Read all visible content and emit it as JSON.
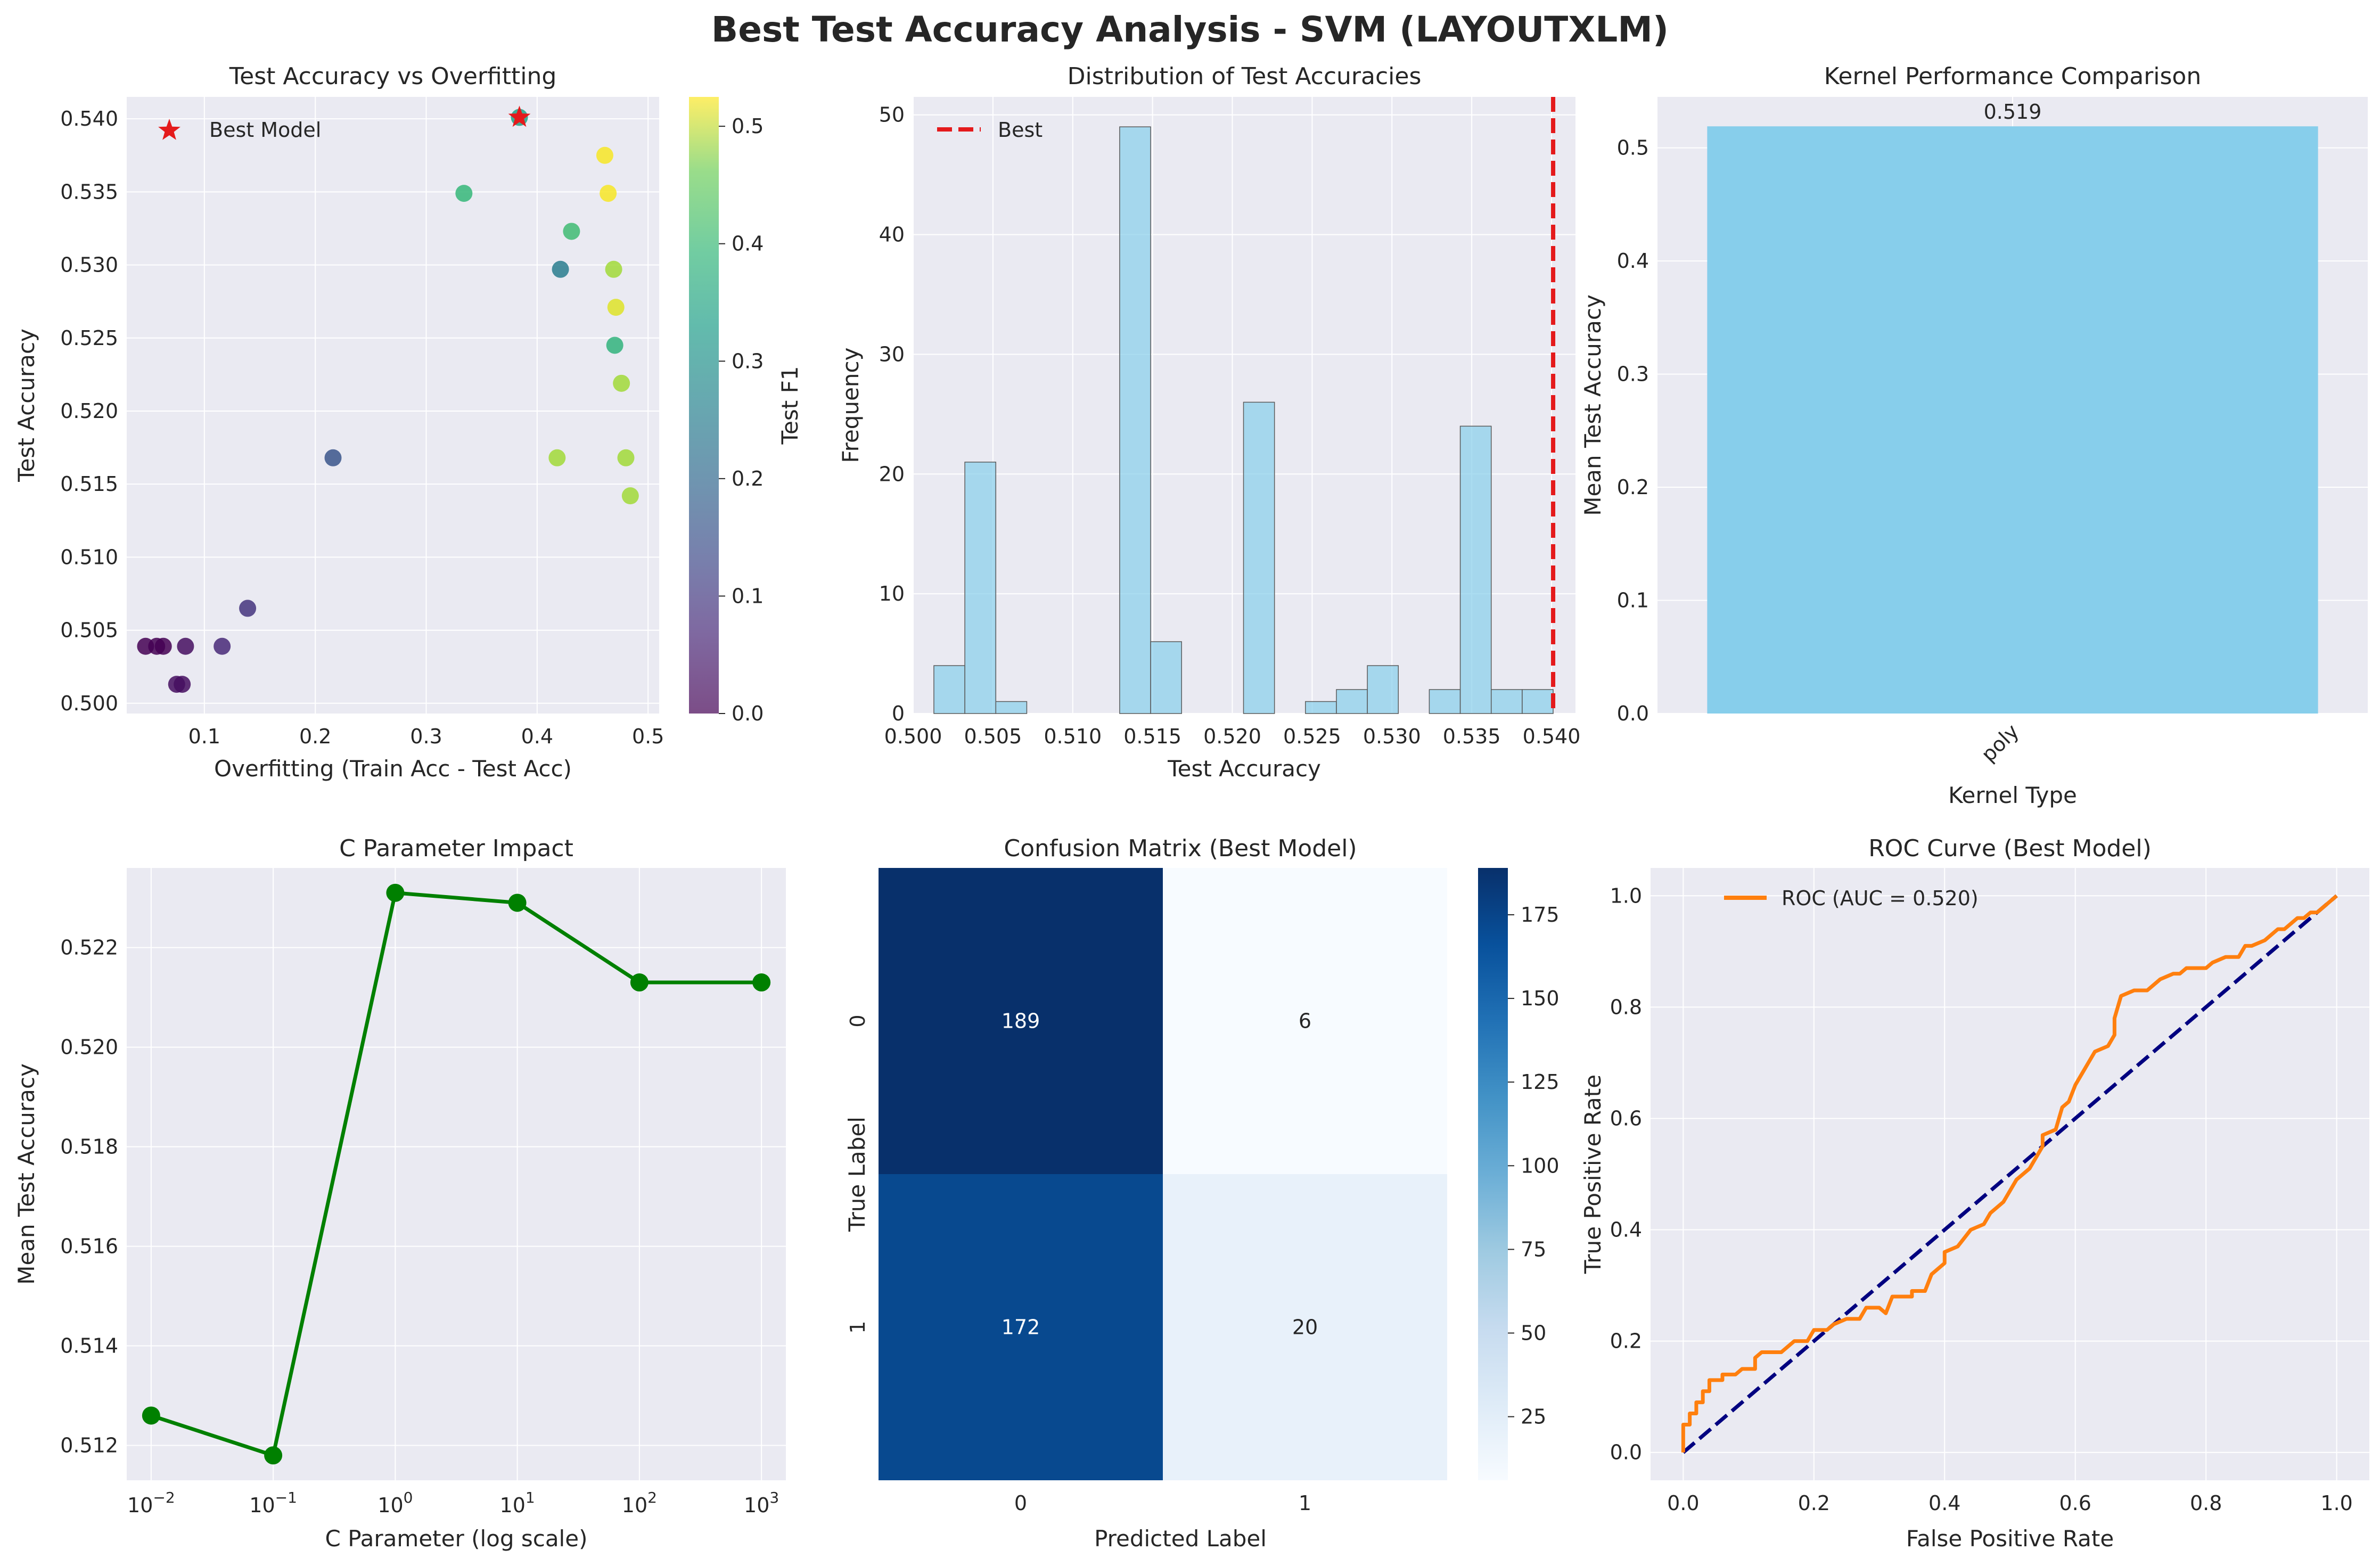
{
  "title": "Best Test Accuracy Analysis - SVM (LAYOUTXLM)",
  "chart_data": [
    {
      "type": "scatter",
      "title": "Test Accuracy vs Overfitting",
      "xlabel": "Overfitting (Train Acc - Test Acc)",
      "ylabel": "Test Accuracy",
      "xlim": [
        0.03,
        0.51
      ],
      "ylim": [
        0.4993,
        0.5415
      ],
      "xticks": [
        "0.1",
        "0.2",
        "0.3",
        "0.4",
        "0.5"
      ],
      "xtick_values": [
        0.1,
        0.2,
        0.3,
        0.4,
        0.5
      ],
      "yticks": [
        "0.500",
        "0.505",
        "0.510",
        "0.515",
        "0.520",
        "0.525",
        "0.530",
        "0.535",
        "0.540"
      ],
      "ytick_values": [
        0.5,
        0.505,
        0.51,
        0.515,
        0.52,
        0.525,
        0.53,
        0.535,
        0.54
      ],
      "colorbar_label": "Test F1",
      "colorbar_range": [
        0.0,
        0.525
      ],
      "colorbar_ticks": [
        "0.0",
        "0.1",
        "0.2",
        "0.3",
        "0.4",
        "0.5"
      ],
      "colorbar_tick_values": [
        0.0,
        0.1,
        0.2,
        0.3,
        0.4,
        0.5
      ],
      "colormap": "viridis",
      "legend": "Best Model",
      "best_marker_color": "#e41a1c",
      "points": [
        {
          "x": 0.384,
          "y": 0.5401,
          "f1": 0.3
        },
        {
          "x": 0.461,
          "y": 0.5375,
          "f1": 0.52
        },
        {
          "x": 0.334,
          "y": 0.5349,
          "f1": 0.35
        },
        {
          "x": 0.464,
          "y": 0.5349,
          "f1": 0.52
        },
        {
          "x": 0.431,
          "y": 0.5323,
          "f1": 0.36
        },
        {
          "x": 0.421,
          "y": 0.5297,
          "f1": 0.22
        },
        {
          "x": 0.469,
          "y": 0.5297,
          "f1": 0.45
        },
        {
          "x": 0.471,
          "y": 0.5271,
          "f1": 0.5
        },
        {
          "x": 0.47,
          "y": 0.5245,
          "f1": 0.34
        },
        {
          "x": 0.476,
          "y": 0.5219,
          "f1": 0.45
        },
        {
          "x": 0.216,
          "y": 0.5168,
          "f1": 0.14
        },
        {
          "x": 0.418,
          "y": 0.5168,
          "f1": 0.45
        },
        {
          "x": 0.48,
          "y": 0.5168,
          "f1": 0.45
        },
        {
          "x": 0.484,
          "y": 0.5142,
          "f1": 0.45
        },
        {
          "x": 0.139,
          "y": 0.5065,
          "f1": 0.08
        },
        {
          "x": 0.047,
          "y": 0.5039,
          "f1": 0.0
        },
        {
          "x": 0.057,
          "y": 0.5039,
          "f1": 0.0
        },
        {
          "x": 0.063,
          "y": 0.5039,
          "f1": 0.0
        },
        {
          "x": 0.083,
          "y": 0.5039,
          "f1": 0.02
        },
        {
          "x": 0.116,
          "y": 0.5039,
          "f1": 0.06
        },
        {
          "x": 0.075,
          "y": 0.5013,
          "f1": 0.02
        },
        {
          "x": 0.08,
          "y": 0.5013,
          "f1": 0.02
        }
      ],
      "best": {
        "x": 0.384,
        "y": 0.5401
      }
    },
    {
      "type": "bar",
      "title": "Distribution of Test Accuracies",
      "xlabel": "Test Accuracy",
      "ylabel": "Frequency",
      "xlim": [
        0.5,
        0.5415
      ],
      "ylim": [
        0,
        51.5
      ],
      "xticks": [
        "0.500",
        "0.505",
        "0.510",
        "0.515",
        "0.520",
        "0.525",
        "0.530",
        "0.535",
        "0.540"
      ],
      "xtick_values": [
        0.5,
        0.505,
        0.51,
        0.515,
        0.52,
        0.525,
        0.53,
        0.535,
        0.54
      ],
      "yticks": [
        "0",
        "10",
        "20",
        "30",
        "40",
        "50"
      ],
      "ytick_values": [
        0,
        10,
        20,
        30,
        40,
        50
      ],
      "bin_start": 0.5013,
      "bin_width": 0.00194,
      "counts": [
        4,
        21,
        1,
        0,
        0,
        0,
        49,
        6,
        0,
        0,
        26,
        0,
        1,
        2,
        4,
        0,
        2,
        24,
        2,
        2
      ],
      "best_line": 0.5401,
      "legend": "Best",
      "bar_color": "#87ceeb",
      "line_color": "#e41a1c"
    },
    {
      "type": "bar",
      "title": "Kernel Performance Comparison",
      "xlabel": "Kernel Type",
      "ylabel": "Mean Test Accuracy",
      "categories": [
        "poly"
      ],
      "values": [
        0.519
      ],
      "value_labels": [
        "0.519"
      ],
      "ylim": [
        0,
        0.545
      ],
      "yticks": [
        "0.0",
        "0.1",
        "0.2",
        "0.3",
        "0.4",
        "0.5"
      ],
      "ytick_values": [
        0.0,
        0.1,
        0.2,
        0.3,
        0.4,
        0.5
      ],
      "bar_color": "#87ceeb"
    },
    {
      "type": "line",
      "title": "C Parameter Impact",
      "xlabel": "C Parameter (log scale)",
      "ylabel": "Mean Test Accuracy",
      "x": [
        0.01,
        0.1,
        1,
        10,
        100,
        1000
      ],
      "values": [
        0.5126,
        0.5118,
        0.5231,
        0.5229,
        0.5213,
        0.5213
      ],
      "xscale": "log",
      "xlim_exp": [
        -2.2,
        3.2
      ],
      "ylim": [
        0.5113,
        0.5236
      ],
      "xticks": [
        {
          "base": "10",
          "exp": "−2"
        },
        {
          "base": "10",
          "exp": "−1"
        },
        {
          "base": "10",
          "exp": "0"
        },
        {
          "base": "10",
          "exp": "1"
        },
        {
          "base": "10",
          "exp": "2"
        },
        {
          "base": "10",
          "exp": "3"
        }
      ],
      "xtick_exps": [
        -2,
        -1,
        0,
        1,
        2,
        3
      ],
      "yticks": [
        "0.512",
        "0.514",
        "0.516",
        "0.518",
        "0.520",
        "0.522"
      ],
      "ytick_values": [
        0.512,
        0.514,
        0.516,
        0.518,
        0.52,
        0.522
      ],
      "line_color": "#008000"
    },
    {
      "type": "heatmap",
      "title": "Confusion Matrix (Best Model)",
      "xlabel": "Predicted Label",
      "ylabel": "True Label",
      "x_categories": [
        "0",
        "1"
      ],
      "y_categories": [
        "0",
        "1"
      ],
      "matrix": [
        [
          189,
          6
        ],
        [
          172,
          20
        ]
      ],
      "colormap": "Blues",
      "colorbar_range": [
        6,
        189
      ],
      "colorbar_ticks": [
        "25",
        "50",
        "75",
        "100",
        "125",
        "150",
        "175"
      ],
      "colorbar_tick_values": [
        25,
        50,
        75,
        100,
        125,
        150,
        175
      ]
    },
    {
      "type": "line",
      "title": "ROC Curve (Best Model)",
      "xlabel": "False Positive Rate",
      "ylabel": "True Positive Rate",
      "xlim": [
        -0.05,
        1.05
      ],
      "ylim": [
        -0.05,
        1.05
      ],
      "xticks": [
        "0.0",
        "0.2",
        "0.4",
        "0.6",
        "0.8",
        "1.0"
      ],
      "xtick_values": [
        0.0,
        0.2,
        0.4,
        0.6,
        0.8,
        1.0
      ],
      "yticks": [
        "0.0",
        "0.2",
        "0.4",
        "0.6",
        "0.8",
        "1.0"
      ],
      "ytick_values": [
        0.0,
        0.2,
        0.4,
        0.6,
        0.8,
        1.0
      ],
      "legend": "ROC (AUC = 0.520)",
      "roc_color": "#ff7f0e",
      "diag_color": "#000080",
      "roc": [
        [
          0,
          0
        ],
        [
          0,
          0.05
        ],
        [
          0.01,
          0.05
        ],
        [
          0.01,
          0.07
        ],
        [
          0.02,
          0.07
        ],
        [
          0.02,
          0.09
        ],
        [
          0.03,
          0.09
        ],
        [
          0.03,
          0.11
        ],
        [
          0.04,
          0.11
        ],
        [
          0.04,
          0.13
        ],
        [
          0.06,
          0.13
        ],
        [
          0.06,
          0.14
        ],
        [
          0.08,
          0.14
        ],
        [
          0.09,
          0.15
        ],
        [
          0.11,
          0.15
        ],
        [
          0.11,
          0.17
        ],
        [
          0.12,
          0.18
        ],
        [
          0.15,
          0.18
        ],
        [
          0.16,
          0.19
        ],
        [
          0.17,
          0.2
        ],
        [
          0.19,
          0.2
        ],
        [
          0.2,
          0.22
        ],
        [
          0.22,
          0.22
        ],
        [
          0.23,
          0.23
        ],
        [
          0.25,
          0.24
        ],
        [
          0.27,
          0.24
        ],
        [
          0.28,
          0.26
        ],
        [
          0.3,
          0.26
        ],
        [
          0.31,
          0.25
        ],
        [
          0.32,
          0.28
        ],
        [
          0.35,
          0.28
        ],
        [
          0.35,
          0.29
        ],
        [
          0.37,
          0.29
        ],
        [
          0.38,
          0.32
        ],
        [
          0.4,
          0.34
        ],
        [
          0.4,
          0.36
        ],
        [
          0.42,
          0.37
        ],
        [
          0.44,
          0.4
        ],
        [
          0.46,
          0.41
        ],
        [
          0.47,
          0.43
        ],
        [
          0.49,
          0.45
        ],
        [
          0.5,
          0.47
        ],
        [
          0.51,
          0.49
        ],
        [
          0.52,
          0.5
        ],
        [
          0.53,
          0.51
        ],
        [
          0.54,
          0.53
        ],
        [
          0.55,
          0.55
        ],
        [
          0.55,
          0.57
        ],
        [
          0.57,
          0.58
        ],
        [
          0.58,
          0.62
        ],
        [
          0.59,
          0.63
        ],
        [
          0.6,
          0.66
        ],
        [
          0.61,
          0.68
        ],
        [
          0.62,
          0.7
        ],
        [
          0.63,
          0.72
        ],
        [
          0.65,
          0.73
        ],
        [
          0.66,
          0.75
        ],
        [
          0.66,
          0.78
        ],
        [
          0.67,
          0.82
        ],
        [
          0.69,
          0.83
        ],
        [
          0.71,
          0.83
        ],
        [
          0.72,
          0.84
        ],
        [
          0.73,
          0.85
        ],
        [
          0.75,
          0.86
        ],
        [
          0.76,
          0.86
        ],
        [
          0.77,
          0.87
        ],
        [
          0.8,
          0.87
        ],
        [
          0.81,
          0.88
        ],
        [
          0.83,
          0.89
        ],
        [
          0.85,
          0.89
        ],
        [
          0.86,
          0.91
        ],
        [
          0.87,
          0.91
        ],
        [
          0.89,
          0.92
        ],
        [
          0.9,
          0.93
        ],
        [
          0.91,
          0.94
        ],
        [
          0.92,
          0.94
        ],
        [
          0.93,
          0.95
        ],
        [
          0.94,
          0.96
        ],
        [
          0.95,
          0.96
        ],
        [
          0.96,
          0.97
        ],
        [
          0.97,
          0.97
        ],
        [
          0.98,
          0.98
        ],
        [
          0.99,
          0.99
        ],
        [
          1,
          1
        ]
      ]
    }
  ]
}
